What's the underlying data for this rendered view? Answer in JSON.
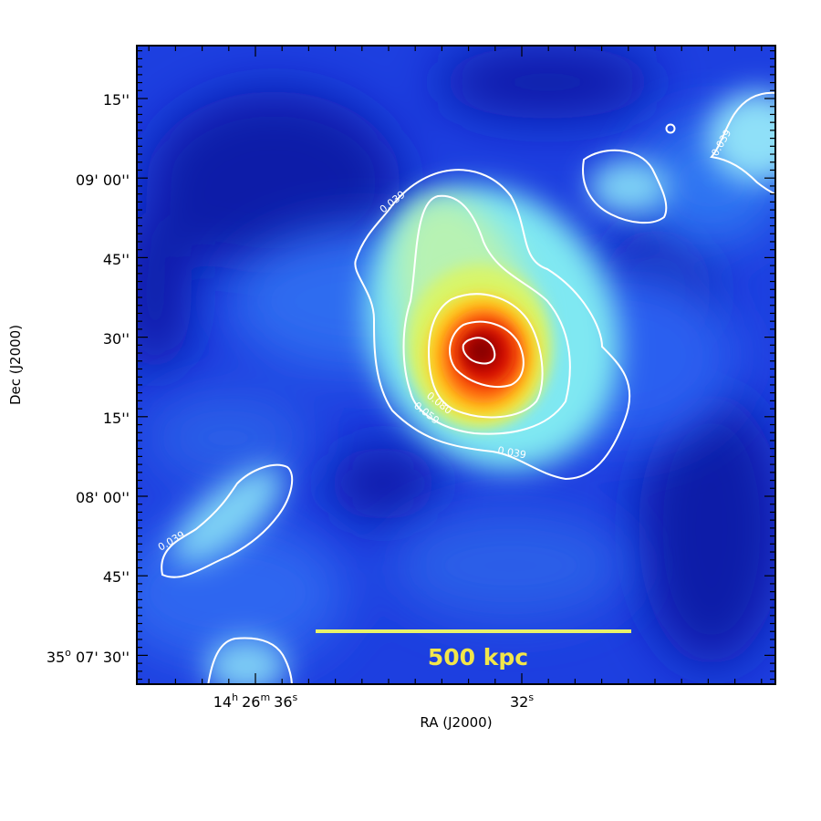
{
  "image": {
    "x_axis_title": "RA (J2000)",
    "y_axis_title": "Dec (J2000)",
    "x_tick_labels": [
      {
        "h": "14",
        "hsup": "h",
        "m": "26",
        "msup": "m",
        "s": "36",
        "ssup": "s"
      },
      {
        "s": "32",
        "ssup": "s"
      }
    ],
    "y_tick_labels": [
      {
        "text": "15''"
      },
      {
        "text": "09' 00''"
      },
      {
        "text": "45''"
      },
      {
        "text": "30''"
      },
      {
        "text": "15''"
      },
      {
        "text": "08' 00''"
      },
      {
        "text": "45''"
      },
      {
        "deg": "35",
        "degsup": "o",
        "text": " 07' 30''"
      }
    ],
    "contour_levels": [
      "0.039",
      "0.059",
      "0.080"
    ],
    "contour_labels": [
      {
        "text": "0.039"
      },
      {
        "text": "0.039"
      },
      {
        "text": "0.039"
      },
      {
        "text": "0.039"
      },
      {
        "text": "0.059"
      },
      {
        "text": "0.080"
      }
    ],
    "scale_bar": {
      "label": "500 kpc"
    },
    "colors": {
      "background": "#1d3fe0",
      "deep": "#0a1ca8",
      "contour": "#ffffff",
      "scale_bar": "#e8f26a",
      "scale_label": "#f2e64a",
      "peak": "#8a0000"
    }
  }
}
